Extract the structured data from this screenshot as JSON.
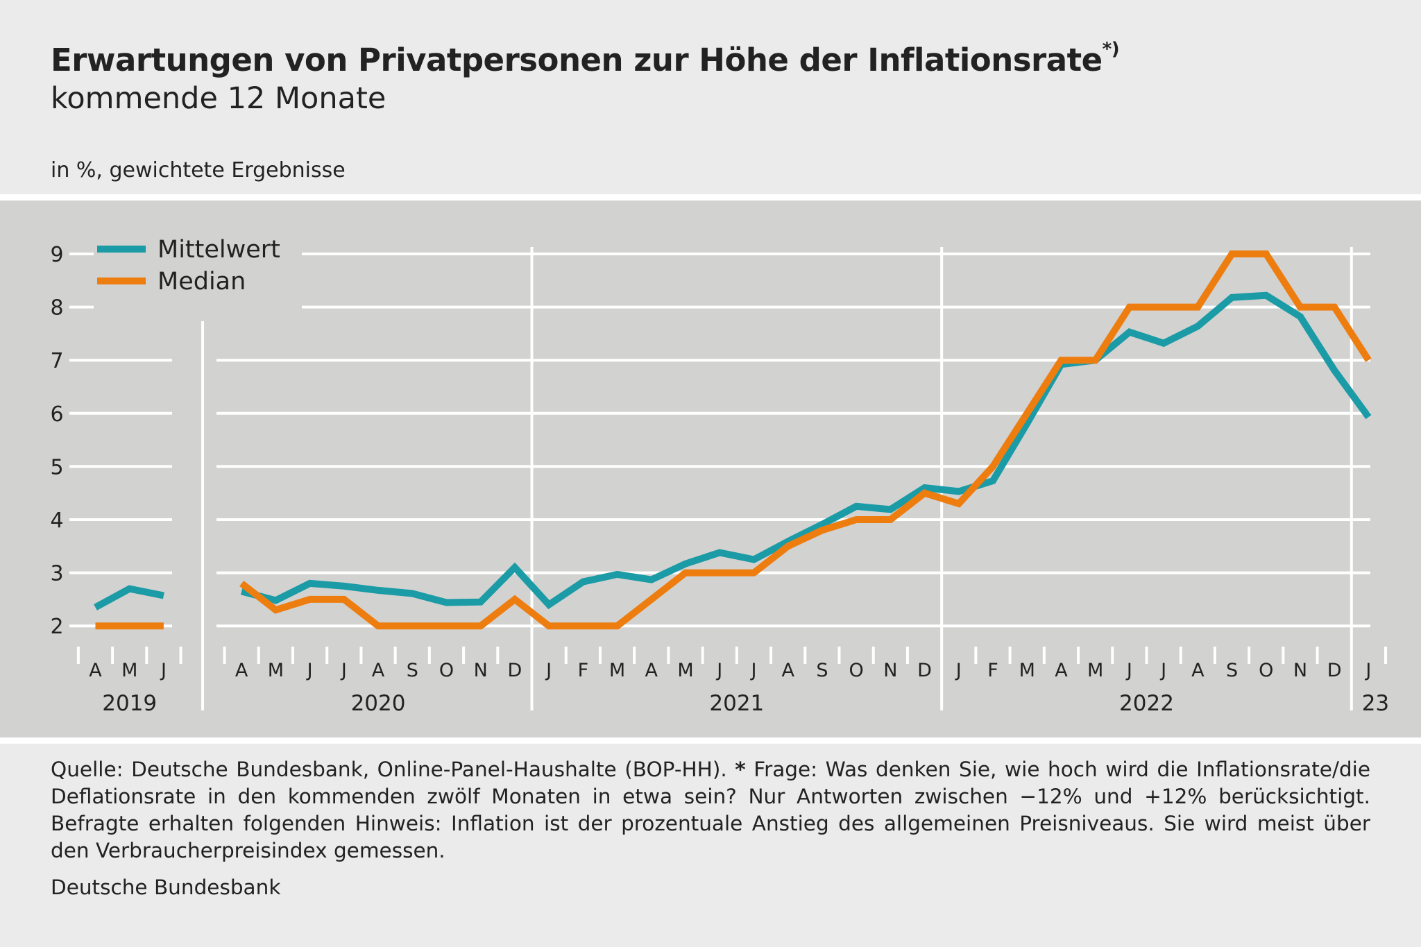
{
  "header": {
    "title": "Erwartungen von Privatpersonen zur Höhe der Inflationsrate",
    "title_marker": "*)",
    "subtitle": "kommende 12 Monate",
    "unit": "in %, gewichtete Ergebnisse"
  },
  "footnote": {
    "part1": "Quelle: Deutsche Bundesbank, Online-Panel-Haushalte (BOP-HH).",
    "star": "*",
    "part2": "Frage: Was denken Sie, wie hoch wird die Inflationsrate/die Deflationsrate in den kommenden zwölf Monaten in etwa sein? Nur Antworten zwischen −12% und +12% berücksichtigt. Befragte erhalten folgenden Hinweis: Inflation ist der prozentuale Anstieg des allgemeinen Preisniveaus. Sie wird meist über den Verbraucherpreisindex gemessen."
  },
  "source": "Deutsche Bundesbank",
  "colors": {
    "mittelwert": "#1a9ba6",
    "median": "#ee7d0f",
    "plot_bg": "#d2d2d1",
    "page_bg": "#ebebeb",
    "grid": "#ffffff"
  },
  "chart_data": {
    "type": "line",
    "ylim": [
      2,
      9
    ],
    "yticks": [
      2,
      3,
      4,
      5,
      6,
      7,
      8,
      9
    ],
    "grid": true,
    "legend_position": "top-left",
    "x_labels": [
      "A",
      "M",
      "J",
      "A",
      "M",
      "J",
      "J",
      "A",
      "S",
      "O",
      "N",
      "D",
      "J",
      "F",
      "M",
      "A",
      "M",
      "J",
      "J",
      "A",
      "S",
      "O",
      "N",
      "D",
      "J",
      "F",
      "M",
      "A",
      "M",
      "J",
      "J",
      "A",
      "S",
      "O",
      "N",
      "D",
      "J"
    ],
    "x": [
      "2019-04",
      "2019-05",
      "2019-06",
      "2020-04",
      "2020-05",
      "2020-06",
      "2020-07",
      "2020-08",
      "2020-09",
      "2020-10",
      "2020-11",
      "2020-12",
      "2021-01",
      "2021-02",
      "2021-03",
      "2021-04",
      "2021-05",
      "2021-06",
      "2021-07",
      "2021-08",
      "2021-09",
      "2021-10",
      "2021-11",
      "2021-12",
      "2022-01",
      "2022-02",
      "2022-03",
      "2022-04",
      "2022-05",
      "2022-06",
      "2022-07",
      "2022-08",
      "2022-09",
      "2022-10",
      "2022-11",
      "2022-12",
      "2023-01"
    ],
    "year_labels": [
      {
        "label": "2019",
        "months": [
          "2019-04",
          "2019-06"
        ]
      },
      {
        "label": "2020",
        "months": [
          "2020-04",
          "2020-12"
        ]
      },
      {
        "label": "2021",
        "months": [
          "2021-01",
          "2021-12"
        ]
      },
      {
        "label": "2022",
        "months": [
          "2022-01",
          "2022-12"
        ]
      },
      {
        "label": "23",
        "months": [
          "2023-01",
          "2023-01"
        ]
      }
    ],
    "series": [
      {
        "name": "Mittelwert",
        "values": [
          2.35,
          2.7,
          2.57,
          2.65,
          2.48,
          2.8,
          2.75,
          2.67,
          2.61,
          2.44,
          2.45,
          3.1,
          2.4,
          2.83,
          2.97,
          2.87,
          3.17,
          3.38,
          3.25,
          3.59,
          3.91,
          4.25,
          4.19,
          4.6,
          4.53,
          4.73,
          5.81,
          6.92,
          7.0,
          7.53,
          7.32,
          7.64,
          8.18,
          8.22,
          7.82,
          6.81,
          5.93
        ]
      },
      {
        "name": "Median",
        "values": [
          2,
          2,
          2,
          2.8,
          2.3,
          2.5,
          2.5,
          2,
          2,
          2,
          2,
          2.5,
          2,
          2,
          2,
          2.5,
          3,
          3,
          3,
          3.5,
          3.8,
          4,
          4,
          4.5,
          4.3,
          5,
          6,
          7,
          7,
          8,
          8,
          8,
          9,
          9,
          8,
          8,
          7
        ]
      }
    ]
  }
}
